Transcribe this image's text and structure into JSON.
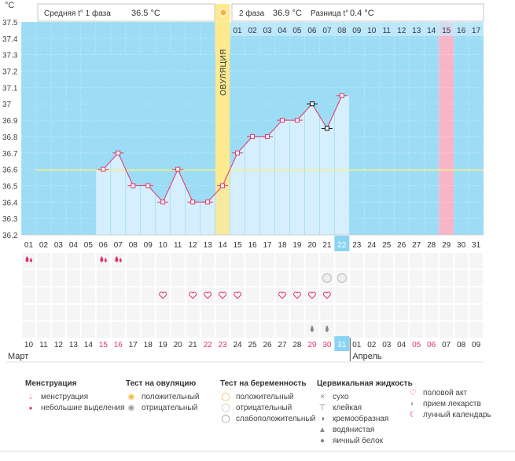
{
  "header": {
    "phase1_label": "Средняя t° 1 фаза",
    "phase1_value": "36.5 °C",
    "phase2_label": "2 фаза",
    "phase2_value": "36.9 °C",
    "diff_label": "Разница t°",
    "diff_value": "0.4 °C"
  },
  "ovulation_label": "ОВУЛЯЦИЯ",
  "colors": {
    "sky": "#9ddcf5",
    "cycle_fill": "#d6efff",
    "ovulation": "#fde98f",
    "menstruation": "#f8b4c8",
    "line": "#e0356a",
    "average": "#f3ef80"
  },
  "chart_data": {
    "type": "line",
    "ylabel": "°С",
    "ylim": [
      36.2,
      37.5
    ],
    "yticks": [
      "36.2",
      "36.3",
      "36.4",
      "36.5",
      "36.6",
      "36.7",
      "36.8",
      "36.9",
      "37",
      "37.1",
      "37.2",
      "37.3",
      "37.4",
      "37.5"
    ],
    "average_line": 36.6,
    "top_labels": [
      "",
      "",
      "",
      "",
      "",
      "",
      "",
      "",
      "",
      "",
      "",
      "",
      "",
      "",
      "01",
      "02",
      "03",
      "04",
      "05",
      "06",
      "07",
      "08",
      "09",
      "10",
      "11",
      "12",
      "13",
      "14",
      "15",
      "16",
      "17"
    ],
    "date_labels": [
      "01",
      "02",
      "03",
      "04",
      "05",
      "06",
      "07",
      "08",
      "09",
      "10",
      "11",
      "12",
      "13",
      "14",
      "15",
      "16",
      "17",
      "18",
      "19",
      "20",
      "21",
      "22",
      "23",
      "24",
      "25",
      "26",
      "27",
      "28",
      "29",
      "30",
      "31"
    ],
    "highlight_index": 21,
    "ovulation_index": 13,
    "menstruation_top_index": 28,
    "data_start": 5,
    "data_end": 22,
    "series": [
      {
        "values": [
          null,
          null,
          null,
          null,
          null,
          36.6,
          36.7,
          36.5,
          36.5,
          36.4,
          36.6,
          36.4,
          36.4,
          36.5,
          36.7,
          36.8,
          36.8,
          36.9,
          36.9,
          37.0,
          36.85,
          37.05,
          null,
          null,
          null,
          null,
          null,
          null,
          null,
          null,
          null
        ],
        "black_markers": [
          19,
          20
        ]
      }
    ],
    "events": {
      "menstruation": [
        0,
        5,
        6
      ],
      "pregnancy_test": [
        20,
        21
      ],
      "intercourse": [
        9,
        11,
        12,
        13,
        14,
        17,
        18,
        19,
        20
      ],
      "watery": [
        19,
        20
      ]
    },
    "bottom_labels": [
      {
        "t": "10",
        "red": false
      },
      {
        "t": "11",
        "red": false
      },
      {
        "t": "12",
        "red": false
      },
      {
        "t": "13",
        "red": false
      },
      {
        "t": "14",
        "red": false
      },
      {
        "t": "15",
        "red": true
      },
      {
        "t": "16",
        "red": true
      },
      {
        "t": "17",
        "red": false
      },
      {
        "t": "18",
        "red": false
      },
      {
        "t": "19",
        "red": false
      },
      {
        "t": "20",
        "red": false
      },
      {
        "t": "21",
        "red": false
      },
      {
        "t": "22",
        "red": true
      },
      {
        "t": "23",
        "red": true
      },
      {
        "t": "24",
        "red": false
      },
      {
        "t": "25",
        "red": false
      },
      {
        "t": "26",
        "red": false
      },
      {
        "t": "27",
        "red": false
      },
      {
        "t": "28",
        "red": false
      },
      {
        "t": "29",
        "red": true
      },
      {
        "t": "30",
        "red": true
      },
      {
        "t": "31",
        "red": false
      },
      {
        "t": "01",
        "red": false
      },
      {
        "t": "02",
        "red": false
      },
      {
        "t": "03",
        "red": false
      },
      {
        "t": "04",
        "red": false
      },
      {
        "t": "05",
        "red": true
      },
      {
        "t": "06",
        "red": true
      },
      {
        "t": "07",
        "red": false
      },
      {
        "t": "08",
        "red": false
      },
      {
        "t": "09",
        "red": false
      }
    ],
    "month_left": "Март",
    "month_right": "Апрель",
    "month_split_index": 22
  },
  "legend": {
    "menstruation": {
      "title": "Менструация",
      "items": [
        "менструация",
        "небольшие выделения"
      ]
    },
    "ovulation_test": {
      "title": "Тест на овуляцию",
      "items": [
        "положительный",
        "отрицательный"
      ]
    },
    "pregnancy_test": {
      "title": "Тест на беременность",
      "items": [
        "положительный",
        "отрицательный",
        "слабоположительный"
      ]
    },
    "cervical": {
      "title": "Цервикальная жидкость",
      "items": [
        "сухо",
        "клейкая",
        "кремообразная",
        "водянистая",
        "яичный белок"
      ]
    },
    "other": {
      "items": [
        "половой акт",
        "прием лекарств",
        "лунный календарь"
      ]
    }
  }
}
